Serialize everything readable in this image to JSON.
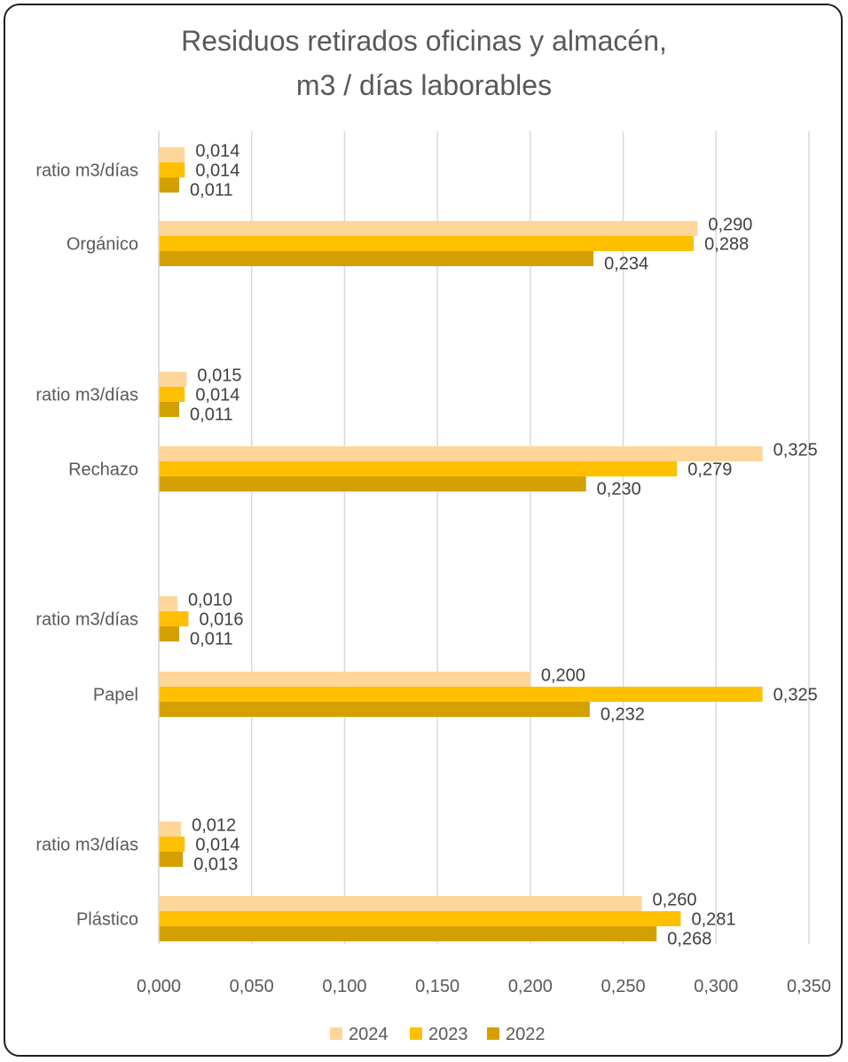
{
  "chart_data": {
    "type": "bar",
    "orientation": "horizontal",
    "title_line1": "Residuos retirados oficinas y almacén,",
    "title_line2": "m3 / días laborables",
    "xlabel": "",
    "ylabel": "",
    "xlim": [
      0,
      0.35
    ],
    "x_ticks": [
      "0,000",
      "0,050",
      "0,100",
      "0,150",
      "0,200",
      "0,250",
      "0,300",
      "0,350"
    ],
    "x_tick_values": [
      0,
      0.05,
      0.1,
      0.15,
      0.2,
      0.25,
      0.3,
      0.35
    ],
    "grid": "vertical",
    "legend_position": "bottom",
    "categories": [
      "ratio m3/días",
      "Orgánico",
      "ratio m3/días",
      "Rechazo",
      "ratio m3/días",
      "Papel",
      "ratio m3/días",
      "Plástico"
    ],
    "series": [
      {
        "name": "2024",
        "color": "#FFD699",
        "values": [
          0.014,
          0.29,
          0.015,
          0.325,
          0.01,
          0.2,
          0.012,
          0.26
        ],
        "labels": [
          "0,014",
          "0,290",
          "0,015",
          "0,325",
          "0,010",
          "0,200",
          "0,012",
          "0,260"
        ]
      },
      {
        "name": "2023",
        "color": "#FFC000",
        "values": [
          0.014,
          0.288,
          0.014,
          0.279,
          0.016,
          0.325,
          0.014,
          0.281
        ],
        "labels": [
          "0,014",
          "0,288",
          "0,014",
          "0,279",
          "0,016",
          "0,325",
          "0,014",
          "0,281"
        ]
      },
      {
        "name": "2022",
        "color": "#D4A000",
        "values": [
          0.011,
          0.234,
          0.011,
          0.23,
          0.011,
          0.232,
          0.013,
          0.268
        ],
        "labels": [
          "0,011",
          "0,234",
          "0,011",
          "0,230",
          "0,011",
          "0,232",
          "0,013",
          "0,268"
        ]
      }
    ]
  }
}
